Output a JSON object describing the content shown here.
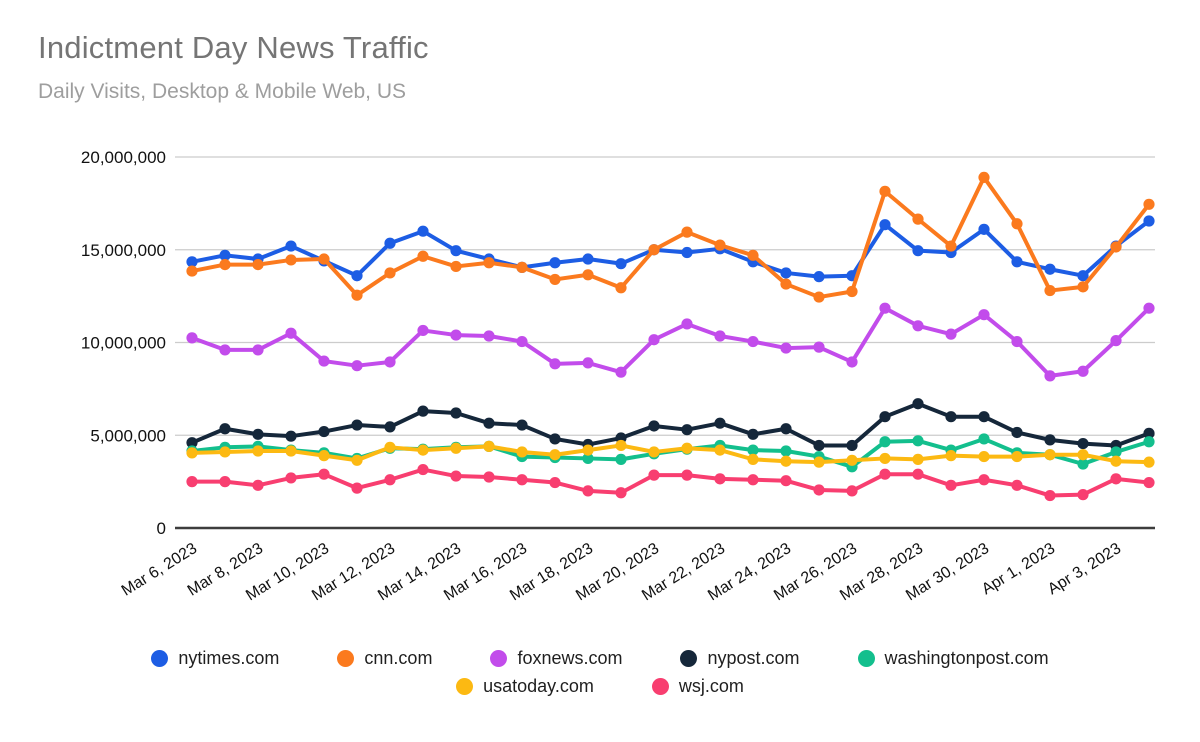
{
  "header": {
    "title": "Indictment Day News Traffic",
    "subtitle": "Daily Visits, Desktop & Mobile Web, US"
  },
  "colors": {
    "title_text": "#757575",
    "subtitle_text": "#9e9e9e",
    "gridline": "#cccccc",
    "baseline": "#3d3d3d",
    "tick_text": "#111111"
  },
  "chart_data": {
    "type": "line",
    "title": "Indictment Day News Traffic",
    "subtitle": "Daily Visits, Desktop & Mobile Web, US",
    "grid": true,
    "legend_position": "bottom",
    "ylim": [
      0,
      20000000
    ],
    "y_ticks": [
      {
        "value": 0,
        "label": "0"
      },
      {
        "value": 5000000,
        "label": "5,000,000"
      },
      {
        "value": 10000000,
        "label": "10,000,000"
      },
      {
        "value": 15000000,
        "label": "15,000,000"
      },
      {
        "value": 20000000,
        "label": "20,000,000"
      }
    ],
    "x_label_every": 2,
    "x": [
      "Mar 6, 2023",
      "Mar 7, 2023",
      "Mar 8, 2023",
      "Mar 9, 2023",
      "Mar 10, 2023",
      "Mar 11, 2023",
      "Mar 12, 2023",
      "Mar 13, 2023",
      "Mar 14, 2023",
      "Mar 15, 2023",
      "Mar 16, 2023",
      "Mar 17, 2023",
      "Mar 18, 2023",
      "Mar 19, 2023",
      "Mar 20, 2023",
      "Mar 21, 2023",
      "Mar 22, 2023",
      "Mar 23, 2023",
      "Mar 24, 2023",
      "Mar 25, 2023",
      "Mar 26, 2023",
      "Mar 27, 2023",
      "Mar 28, 2023",
      "Mar 29, 2023",
      "Mar 30, 2023",
      "Mar 31, 2023",
      "Apr 1, 2023",
      "Apr 2, 2023",
      "Apr 3, 2023",
      "Apr 4, 2023"
    ],
    "legend_rows": [
      [
        "nytimes.com",
        "cnn.com",
        "foxnews.com",
        "nypost.com",
        "washingtonpost.com"
      ],
      [
        "usatoday.com",
        "wsj.com"
      ]
    ],
    "series": [
      {
        "name": "nytimes.com",
        "color": "#1d5de4",
        "values": [
          14350000,
          14700000,
          14500000,
          15200000,
          14400000,
          13600000,
          15350000,
          16000000,
          14950000,
          14500000,
          14050000,
          14300000,
          14500000,
          14250000,
          15000000,
          14850000,
          15050000,
          14350000,
          13750000,
          13550000,
          13600000,
          16350000,
          14950000,
          14850000,
          16100000,
          14350000,
          13950000,
          13600000,
          15200000,
          16550000
        ]
      },
      {
        "name": "cnn.com",
        "color": "#fb7a1e",
        "values": [
          13850000,
          14200000,
          14200000,
          14450000,
          14500000,
          12550000,
          13750000,
          14650000,
          14100000,
          14300000,
          14050000,
          13400000,
          13650000,
          12950000,
          15000000,
          15950000,
          15250000,
          14700000,
          13150000,
          12450000,
          12750000,
          18150000,
          16650000,
          15200000,
          18900000,
          16400000,
          12800000,
          13000000,
          15150000,
          17450000
        ]
      },
      {
        "name": "foxnews.com",
        "color": "#c24ceb",
        "values": [
          10250000,
          9600000,
          9600000,
          10500000,
          9000000,
          8750000,
          8950000,
          10650000,
          10400000,
          10350000,
          10050000,
          8850000,
          8900000,
          8400000,
          10150000,
          11000000,
          10350000,
          10050000,
          9700000,
          9750000,
          8950000,
          11850000,
          10900000,
          10450000,
          11500000,
          10050000,
          8200000,
          8450000,
          10100000,
          11850000
        ]
      },
      {
        "name": "nypost.com",
        "color": "#15273a",
        "values": [
          4600000,
          5350000,
          5050000,
          4950000,
          5200000,
          5550000,
          5450000,
          6300000,
          6200000,
          5650000,
          5550000,
          4800000,
          4500000,
          4850000,
          5500000,
          5300000,
          5650000,
          5050000,
          5350000,
          4450000,
          4450000,
          6000000,
          6700000,
          6000000,
          6000000,
          5150000,
          4750000,
          4550000,
          4450000,
          5100000
        ]
      },
      {
        "name": "washingtonpost.com",
        "color": "#13bf8d",
        "values": [
          4150000,
          4350000,
          4400000,
          4200000,
          4050000,
          3750000,
          4300000,
          4250000,
          4350000,
          4400000,
          3850000,
          3800000,
          3750000,
          3700000,
          4000000,
          4250000,
          4450000,
          4200000,
          4150000,
          3850000,
          3300000,
          4650000,
          4700000,
          4200000,
          4800000,
          4050000,
          3950000,
          3450000,
          4100000,
          4650000
        ]
      },
      {
        "name": "usatoday.com",
        "color": "#fcb912",
        "values": [
          4050000,
          4100000,
          4150000,
          4150000,
          3900000,
          3650000,
          4350000,
          4200000,
          4300000,
          4400000,
          4100000,
          3950000,
          4200000,
          4450000,
          4100000,
          4300000,
          4200000,
          3700000,
          3600000,
          3550000,
          3650000,
          3750000,
          3700000,
          3900000,
          3850000,
          3850000,
          3950000,
          3950000,
          3600000,
          3550000
        ]
      },
      {
        "name": "wsj.com",
        "color": "#f83e70",
        "values": [
          2500000,
          2500000,
          2300000,
          2700000,
          2900000,
          2150000,
          2600000,
          3150000,
          2800000,
          2750000,
          2600000,
          2450000,
          2000000,
          1900000,
          2850000,
          2850000,
          2650000,
          2600000,
          2550000,
          2050000,
          2000000,
          2900000,
          2900000,
          2300000,
          2600000,
          2300000,
          1750000,
          1800000,
          2650000,
          2450000
        ]
      }
    ]
  }
}
